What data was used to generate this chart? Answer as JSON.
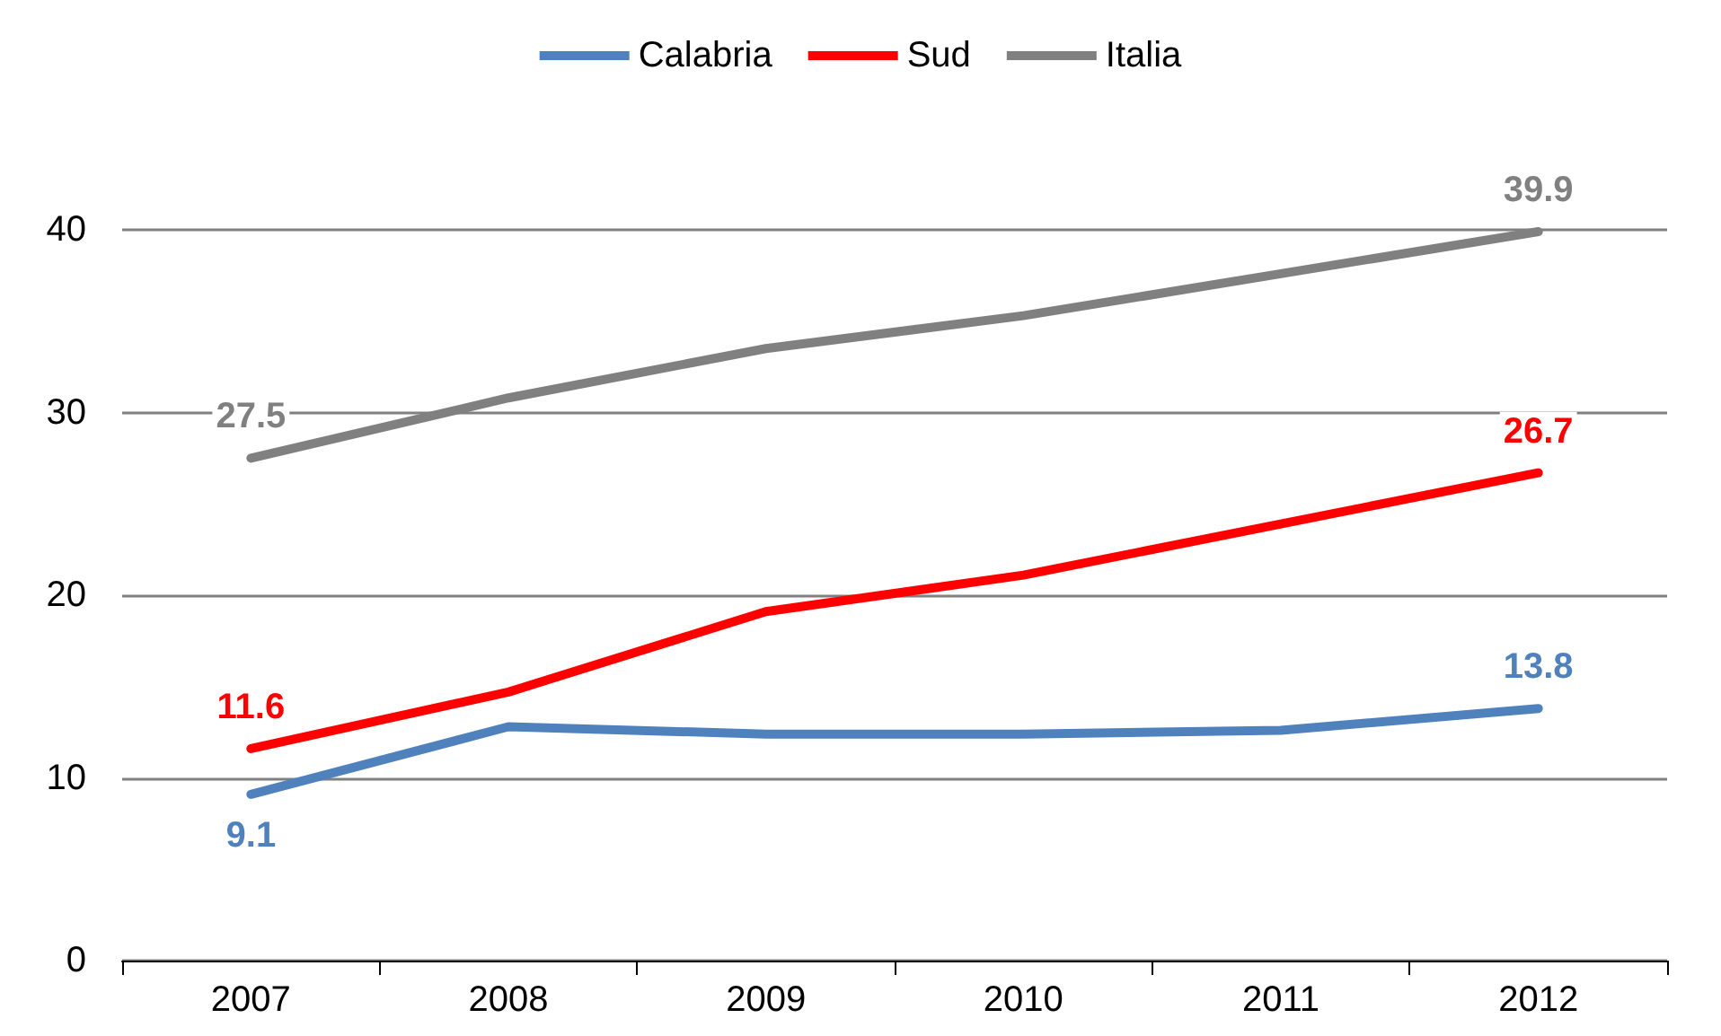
{
  "chart_data": {
    "type": "line",
    "categories": [
      "2007",
      "2008",
      "2009",
      "2010",
      "2011",
      "2012"
    ],
    "series": [
      {
        "name": "Calabria",
        "color": "#4f81bd",
        "values": [
          9.1,
          12.8,
          12.4,
          12.4,
          12.6,
          13.8
        ],
        "value_labels": [
          "9.1",
          null,
          null,
          null,
          null,
          "13.8"
        ]
      },
      {
        "name": "Sud",
        "color": "#ff0000",
        "values": [
          11.6,
          14.7,
          19.1,
          21.1,
          23.9,
          26.7
        ],
        "value_labels": [
          "11.6",
          null,
          null,
          null,
          null,
          "26.7"
        ]
      },
      {
        "name": "Italia",
        "color": "#808080",
        "values": [
          27.5,
          30.8,
          33.5,
          35.3,
          37.6,
          39.9
        ],
        "value_labels": [
          "27.5",
          null,
          null,
          null,
          null,
          "39.9"
        ]
      }
    ],
    "ylim": [
      0,
      40
    ],
    "yticks": [
      0,
      10,
      20,
      30,
      40
    ],
    "grid": "y",
    "legend": "top",
    "marker": "none",
    "line_style": "solid"
  }
}
